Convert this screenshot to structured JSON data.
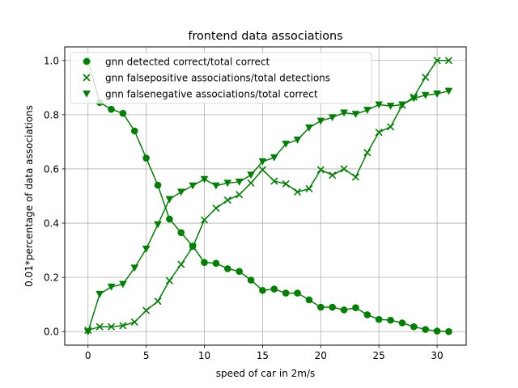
{
  "chart_data": {
    "type": "line",
    "title": "frontend data associations",
    "xlabel": "speed of car in 2m/s",
    "ylabel": "0.01*percentage of data associations",
    "xlim": [
      -2.0,
      32.5
    ],
    "ylim": [
      -0.05,
      1.05
    ],
    "xticks": [
      0,
      5,
      10,
      15,
      20,
      25,
      30
    ],
    "yticks": [
      0.0,
      0.2,
      0.4,
      0.6,
      0.8,
      1.0
    ],
    "xtick_labels": [
      "0",
      "5",
      "10",
      "15",
      "20",
      "25",
      "30"
    ],
    "ytick_labels": [
      "0.0",
      "0.2",
      "0.4",
      "0.6",
      "0.8",
      "1.0"
    ],
    "grid": true,
    "legend_position": "top-left",
    "x": [
      0,
      1,
      2,
      3,
      4,
      5,
      6,
      7,
      8,
      9,
      10,
      11,
      12,
      13,
      14,
      15,
      16,
      17,
      18,
      19,
      20,
      21,
      22,
      23,
      24,
      25,
      26,
      27,
      28,
      29,
      30,
      31
    ],
    "series": [
      {
        "name": "gnn detected correct/total correct",
        "marker": "circle",
        "color": "#008000",
        "values": [
          1.0,
          0.845,
          0.82,
          0.805,
          0.74,
          0.64,
          0.54,
          0.415,
          0.365,
          0.315,
          0.255,
          0.252,
          0.232,
          0.222,
          0.19,
          0.152,
          0.157,
          0.142,
          0.142,
          0.117,
          0.09,
          0.09,
          0.08,
          0.088,
          0.062,
          0.045,
          0.042,
          0.032,
          0.018,
          0.008,
          0.002,
          0.0
        ]
      },
      {
        "name": "gnn falsepositive associations/total detections",
        "marker": "x",
        "color": "#008000",
        "values": [
          0.005,
          0.018,
          0.018,
          0.022,
          0.035,
          0.078,
          0.112,
          0.188,
          0.248,
          0.312,
          0.412,
          0.455,
          0.485,
          0.505,
          0.548,
          0.597,
          0.555,
          0.545,
          0.515,
          0.527,
          0.597,
          0.577,
          0.6,
          0.57,
          0.66,
          0.735,
          0.755,
          0.835,
          0.865,
          0.938,
          1.0,
          1.0
        ]
      },
      {
        "name": "gnn falsenegative associations/total correct",
        "marker": "triangle-down",
        "color": "#008000",
        "values": [
          0.0,
          0.138,
          0.165,
          0.175,
          0.235,
          0.305,
          0.395,
          0.488,
          0.515,
          0.538,
          0.562,
          0.538,
          0.548,
          0.552,
          0.578,
          0.627,
          0.642,
          0.692,
          0.707,
          0.752,
          0.777,
          0.79,
          0.807,
          0.802,
          0.817,
          0.837,
          0.832,
          0.837,
          0.86,
          0.872,
          0.877,
          0.887
        ]
      }
    ]
  }
}
